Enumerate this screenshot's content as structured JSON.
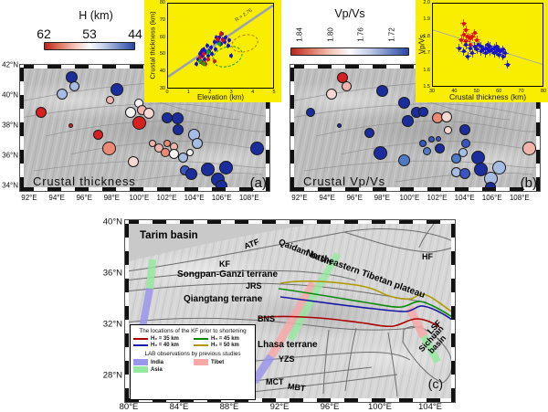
{
  "palette": {
    "darkblue": "#1b2d9c",
    "blue": "#3a55c0",
    "steelblue": "#4d7ac2",
    "lightblue": "#a6bce2",
    "white": "#f6f4f2",
    "palepink": "#f5d8d2",
    "pink": "#f0b4ac",
    "salmon": "#ea8a76",
    "red": "#d92020"
  },
  "panel_a": {
    "label": "Crustal thickness",
    "tag": "(a)",
    "colorbar": {
      "title": "H (km)",
      "ticks": [
        "62",
        "53",
        "44"
      ]
    },
    "lat_labels": [
      "42°N",
      "40°N",
      "38°N",
      "36°N",
      "34°N"
    ],
    "lon_labels": [
      "92°E",
      "94°E",
      "96°E",
      "98°E",
      "100°E",
      "102°E",
      "104°E",
      "106°E",
      "108°E"
    ]
  },
  "panel_b": {
    "label": "Crustal Vp/Vs",
    "tag": "(b)",
    "colorbar": {
      "title": "Vp/Vs",
      "ticks": [
        "1.84",
        "1.80",
        "1.76",
        "1.72"
      ]
    },
    "lon_labels": [
      "92°E",
      "94°E",
      "96°E",
      "98°E",
      "100°E",
      "102°E",
      "104°E",
      "106°E",
      "108°E"
    ]
  },
  "panel_c": {
    "tag": "(c)",
    "lat_labels": [
      "40°N",
      "36°N",
      "32°N",
      "28°N"
    ],
    "lon_labels": [
      "80°E",
      "84°E",
      "88°E",
      "92°E",
      "96°E",
      "100°E",
      "104°E"
    ],
    "labels": {
      "tarim": "Tarim basin",
      "atf": "ATF",
      "qaidam": "Qaidam basin",
      "netp": "Northeastern Tibetan plateau",
      "hf": "HF",
      "kf": "KF",
      "sgt": "Songpan-Ganzi terrane",
      "jrs": "JRS",
      "qt": "Qiangtang terrane",
      "bns": "BNS",
      "lhasa": "Lhasa terrane",
      "yzs": "YZS",
      "mct": "MCT",
      "mbt": "MBT",
      "lsf": "LSF",
      "sichuan": "Sichuan basin"
    },
    "legend": {
      "title": "The locations of the KF prior to shortening",
      "items": [
        {
          "color": "#aa0000",
          "label": "H₀ = 35 km"
        },
        {
          "color": "#0e8a0e",
          "label": "H₀ = 45 km"
        },
        {
          "color": "#1a1aa8",
          "label": "H₀ = 40 km"
        },
        {
          "color": "#b09a00",
          "label": "H₀ = 50 km"
        }
      ],
      "subtitle": "LAB observations by previous studies",
      "patches": [
        {
          "color": "#9a97ea",
          "label": "India"
        },
        {
          "color": "#f7a8a8",
          "label": "Tibet"
        },
        {
          "color": "#96e8a0",
          "label": "Asia"
        }
      ]
    }
  },
  "inset_a": {
    "ylabel": "Crustal thickness (km)",
    "xlabel": "Elevation (km)",
    "yticks": [
      "80",
      "70",
      "60",
      "50",
      "40",
      "30"
    ],
    "xticks": [
      "0",
      "1",
      "2",
      "3",
      "4",
      "5"
    ],
    "annotation": "R = 2.76"
  },
  "inset_b": {
    "ylabel": "Vp/Vs",
    "xlabel": "Crustal thickness (km)",
    "yticks": [
      "2.0",
      "1.9",
      "1.8",
      "1.7",
      "1.6",
      "1.5"
    ],
    "xticks": [
      "30",
      "40",
      "50",
      "60",
      "70",
      "80"
    ]
  },
  "chart_data": [
    {
      "id": "thickness-vs-elevation",
      "type": "scatter",
      "xlabel": "Elevation (km)",
      "ylabel": "Crustal thickness (km)",
      "xlim": [
        0,
        5
      ],
      "ylim": [
        30,
        80
      ],
      "xticks": [
        0,
        1,
        2,
        3,
        4,
        5
      ],
      "yticks": [
        30,
        40,
        50,
        60,
        70,
        80
      ],
      "annotation": "R = 2.76",
      "trend_line": {
        "x1": 0,
        "y1": 36.5,
        "x2": 5,
        "y2": 79
      },
      "series": [
        {
          "name": "stations-blue",
          "color": "#1414cc",
          "points": [
            [
              1.35,
              44
            ],
            [
              1.45,
              47
            ],
            [
              1.5,
              50
            ],
            [
              1.55,
              46
            ],
            [
              1.6,
              52
            ],
            [
              1.65,
              49
            ],
            [
              1.7,
              53
            ],
            [
              1.75,
              47
            ],
            [
              1.8,
              51
            ],
            [
              1.85,
              55
            ],
            [
              1.9,
              49
            ],
            [
              1.95,
              52
            ],
            [
              2.05,
              54
            ],
            [
              2.1,
              50
            ],
            [
              2.2,
              57
            ],
            [
              2.25,
              53
            ],
            [
              2.3,
              60
            ],
            [
              2.4,
              57
            ],
            [
              2.45,
              60
            ],
            [
              2.5,
              56
            ],
            [
              2.55,
              62
            ],
            [
              2.6,
              59
            ],
            [
              2.7,
              57
            ],
            [
              2.75,
              60
            ],
            [
              2.85,
              55
            ],
            [
              2.9,
              58
            ],
            [
              3.0,
              49
            ]
          ]
        },
        {
          "name": "stations-red",
          "color": "#dd1111",
          "points": [
            [
              1.5,
              48
            ],
            [
              1.6,
              45
            ],
            [
              1.7,
              50
            ],
            [
              1.8,
              44
            ],
            [
              1.9,
              47
            ],
            [
              2.2,
              46
            ],
            [
              2.35,
              59
            ],
            [
              2.5,
              62
            ],
            [
              2.6,
              58
            ]
          ]
        },
        {
          "name": "stations-green",
          "color": "#0caa0c",
          "points": [
            [
              1.5,
              46
            ],
            [
              1.7,
              44
            ],
            [
              1.9,
              51
            ],
            [
              2.45,
              56
            ]
          ]
        }
      ]
    },
    {
      "id": "vpvs-vs-thickness",
      "type": "scatter",
      "xlabel": "Crustal thickness (km)",
      "ylabel": "Vp/Vs",
      "xlim": [
        30,
        80
      ],
      "ylim": [
        1.5,
        2.0
      ],
      "xticks": [
        30,
        40,
        50,
        60,
        70,
        80
      ],
      "yticks": [
        1.5,
        1.6,
        1.7,
        1.8,
        1.9,
        2.0
      ],
      "trend_line": {
        "x1": 30,
        "y1": 1.84,
        "x2": 80,
        "y2": 1.63
      },
      "series": [
        {
          "name": "stations-red",
          "color": "#dd1111",
          "points": [
            [
              43,
              1.78
            ],
            [
              44,
              1.88
            ],
            [
              44,
              1.81
            ],
            [
              45,
              1.84
            ],
            [
              45,
              1.77
            ],
            [
              46,
              1.8
            ],
            [
              47,
              1.79
            ],
            [
              47,
              1.75
            ],
            [
              48,
              1.8
            ],
            [
              49,
              1.82
            ],
            [
              50,
              1.78
            ]
          ]
        },
        {
          "name": "stations-blue",
          "color": "#1414cc",
          "points": [
            [
              42,
              1.73
            ],
            [
              44,
              1.71
            ],
            [
              45,
              1.75
            ],
            [
              46,
              1.68
            ],
            [
              47,
              1.73
            ],
            [
              48,
              1.7
            ],
            [
              49,
              1.74
            ],
            [
              50,
              1.72
            ],
            [
              51,
              1.75
            ],
            [
              52,
              1.71
            ],
            [
              52,
              1.74
            ],
            [
              53,
              1.72
            ],
            [
              54,
              1.7
            ],
            [
              54,
              1.73
            ],
            [
              55,
              1.72
            ],
            [
              55,
              1.75
            ],
            [
              56,
              1.71
            ],
            [
              56,
              1.74
            ],
            [
              57,
              1.72
            ],
            [
              58,
              1.7
            ],
            [
              58,
              1.73
            ],
            [
              59,
              1.71
            ],
            [
              59,
              1.74
            ],
            [
              60,
              1.72
            ],
            [
              60,
              1.69
            ],
            [
              61,
              1.71
            ],
            [
              62,
              1.68
            ],
            [
              62,
              1.72
            ],
            [
              63,
              1.7
            ],
            [
              64,
              1.63
            ]
          ]
        }
      ]
    },
    {
      "id": "map-a-bubbles",
      "type": "bubble-map",
      "title": "Crustal thickness",
      "colorbar": {
        "label": "H (km)",
        "ticks": [
          62,
          53,
          44
        ],
        "scheme": "red=62 km thick, blue=44 km thin"
      },
      "bubbles": [
        [
          95.1,
          41.2,
          13,
          "darkblue"
        ],
        [
          95.3,
          40.6,
          11,
          "lightblue"
        ],
        [
          94.4,
          40.1,
          12,
          "lightblue"
        ],
        [
          98.4,
          40.4,
          14,
          "darkblue"
        ],
        [
          97.9,
          39.7,
          9,
          "pink"
        ],
        [
          99.4,
          38.9,
          12,
          "white"
        ],
        [
          100.0,
          39.5,
          10,
          "white"
        ],
        [
          100.2,
          39.0,
          11,
          "pink"
        ],
        [
          100.7,
          38.8,
          12,
          "palepink"
        ],
        [
          102.0,
          38.5,
          12,
          "darkblue"
        ],
        [
          102.8,
          38.5,
          13,
          "darkblue"
        ],
        [
          92.9,
          38.9,
          12,
          "red"
        ],
        [
          95.0,
          38.0,
          5,
          "red"
        ],
        [
          97.0,
          37.4,
          11,
          "red"
        ],
        [
          100.0,
          38.2,
          15,
          "red"
        ],
        [
          102.8,
          37.7,
          12,
          "darkblue"
        ],
        [
          104.0,
          37.4,
          13,
          "lightblue"
        ],
        [
          104.2,
          36.8,
          12,
          "lightblue"
        ],
        [
          97.8,
          36.5,
          15,
          "salmon"
        ],
        [
          99.6,
          35.6,
          12,
          "palepink"
        ],
        [
          101.0,
          36.8,
          8,
          "pink"
        ],
        [
          101.4,
          36.5,
          10,
          "pink"
        ],
        [
          102.0,
          36.8,
          8,
          "salmon"
        ],
        [
          102.5,
          36.6,
          9,
          "pink"
        ],
        [
          101.9,
          36.2,
          10,
          "salmon"
        ],
        [
          102.5,
          36.1,
          11,
          "white"
        ],
        [
          103.2,
          35.9,
          11,
          "lightblue"
        ],
        [
          103.7,
          36.2,
          8,
          "white"
        ],
        [
          103.3,
          35.0,
          11,
          "blue"
        ],
        [
          103.8,
          34.8,
          13,
          "darkblue"
        ],
        [
          105.0,
          35.1,
          15,
          "darkblue"
        ],
        [
          106.3,
          35.2,
          15,
          "darkblue"
        ],
        [
          105.7,
          34.4,
          15,
          "darkblue"
        ],
        [
          106.0,
          34.0,
          13,
          "darkblue"
        ],
        [
          108.6,
          36.5,
          15,
          "darkblue"
        ]
      ]
    },
    {
      "id": "map-b-bubbles",
      "type": "bubble-map",
      "title": "Crustal Vp/Vs",
      "colorbar": {
        "label": "Vp/Vs",
        "ticks": [
          1.84,
          1.8,
          1.76,
          1.72
        ],
        "scheme": "red=1.84 high, blue=1.72 low"
      },
      "bubbles": [
        [
          95.1,
          41.2,
          12,
          "red"
        ],
        [
          95.4,
          40.6,
          11,
          "pink"
        ],
        [
          94.3,
          40.1,
          12,
          "palepink"
        ],
        [
          98.0,
          40.3,
          13,
          "darkblue"
        ],
        [
          99.6,
          39.5,
          13,
          "darkblue"
        ],
        [
          100.5,
          38.9,
          12,
          "darkblue"
        ],
        [
          101.0,
          38.9,
          11,
          "darkblue"
        ],
        [
          99.9,
          38.3,
          13,
          "darkblue"
        ],
        [
          102.0,
          38.5,
          12,
          "salmon"
        ],
        [
          102.7,
          38.6,
          12,
          "palepink"
        ],
        [
          92.8,
          38.9,
          10,
          "darkblue"
        ],
        [
          94.9,
          38.0,
          5,
          "darkblue"
        ],
        [
          97.1,
          37.5,
          11,
          "darkblue"
        ],
        [
          97.9,
          36.2,
          15,
          "darkblue"
        ],
        [
          99.6,
          35.7,
          13,
          "steelblue"
        ],
        [
          101.0,
          36.8,
          8,
          "blue"
        ],
        [
          101.6,
          37.1,
          7,
          "blue"
        ],
        [
          102.1,
          37.1,
          6,
          "blue"
        ],
        [
          101.3,
          36.3,
          9,
          "steelblue"
        ],
        [
          102.2,
          36.5,
          11,
          "darkblue"
        ],
        [
          102.8,
          37.7,
          9,
          "palepink"
        ],
        [
          103.4,
          35.8,
          11,
          "steelblue"
        ],
        [
          104.0,
          37.7,
          12,
          "darkblue"
        ],
        [
          104.1,
          36.8,
          10,
          "blue"
        ],
        [
          103.9,
          36.2,
          10,
          "lightblue"
        ],
        [
          105.0,
          35.9,
          15,
          "darkblue"
        ],
        [
          103.4,
          34.9,
          11,
          "lightblue"
        ],
        [
          104.0,
          34.8,
          12,
          "blue"
        ],
        [
          105.2,
          35.1,
          15,
          "darkblue"
        ],
        [
          106.5,
          35.2,
          15,
          "lightblue"
        ],
        [
          105.9,
          34.5,
          15,
          "lightblue"
        ],
        [
          105.9,
          33.9,
          12,
          "darkblue"
        ],
        [
          108.7,
          36.5,
          15,
          "pink"
        ]
      ]
    }
  ]
}
